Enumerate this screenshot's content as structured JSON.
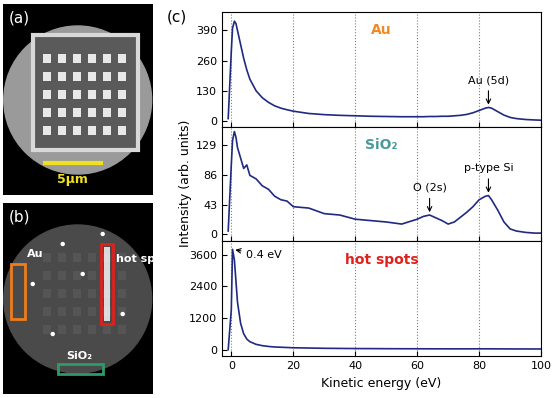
{
  "figure": {
    "panel_label": "(c)",
    "ylabel": "Intensity (arb. units)"
  },
  "images": [
    {
      "label": "(a)",
      "scale_bar": "5μm"
    },
    {
      "label": "(b)",
      "regions": [
        {
          "text": "Au",
          "color": "#f07d1a"
        },
        {
          "text": "hot spots",
          "color": "#e0201b"
        },
        {
          "text": "SiO₂",
          "color": "#2e9a6a"
        }
      ]
    }
  ],
  "chart_data": [
    {
      "type": "line",
      "title": "Au",
      "x": [
        -1,
        0,
        0.4,
        1,
        1.5,
        2,
        3,
        4,
        5,
        6,
        8,
        10,
        12,
        14,
        16,
        18,
        20,
        25,
        30,
        35,
        40,
        45,
        50,
        55,
        60,
        62,
        64,
        66,
        68,
        70,
        72,
        74,
        76,
        78,
        80,
        82,
        83,
        84,
        86,
        88,
        90,
        92,
        95,
        98,
        100
      ],
      "series": [
        {
          "color": "#1f2a80",
          "values": [
            10,
            300,
            400,
            430,
            420,
            390,
            330,
            270,
            220,
            180,
            130,
            100,
            80,
            65,
            55,
            48,
            42,
            32,
            27,
            24,
            22,
            20,
            19,
            18,
            18,
            18,
            19,
            19,
            20,
            20,
            22,
            24,
            28,
            35,
            45,
            55,
            58,
            55,
            40,
            25,
            15,
            10,
            6,
            4,
            3
          ]
        }
      ],
      "xlim": [
        -3,
        100
      ],
      "ylim": [
        -25,
        470
      ],
      "xticks": [
        0,
        20,
        40,
        60,
        80,
        100
      ],
      "yticks": [
        0,
        130,
        260,
        390
      ],
      "grid": true,
      "tick_labels": "y",
      "annotations": [
        {
          "text": "Au (5d)",
          "x": 83,
          "y": 58
        }
      ]
    },
    {
      "type": "line",
      "title": "SiO₂",
      "x": [
        -1,
        0,
        0.4,
        1,
        1.5,
        2,
        3,
        4,
        5,
        6,
        8,
        10,
        12,
        14,
        16,
        18,
        20,
        25,
        30,
        35,
        40,
        45,
        50,
        55,
        60,
        62,
        64,
        66,
        68,
        70,
        72,
        74,
        76,
        78,
        80,
        82,
        83,
        84,
        86,
        88,
        90,
        92,
        95,
        98,
        100
      ],
      "series": [
        {
          "color": "#1f2a80",
          "values": [
            5,
            100,
            135,
            148,
            140,
            125,
            110,
            95,
            100,
            85,
            80,
            70,
            65,
            55,
            50,
            48,
            40,
            38,
            30,
            28,
            22,
            20,
            18,
            15,
            22,
            26,
            28,
            24,
            20,
            15,
            18,
            25,
            32,
            40,
            50,
            55,
            56,
            50,
            35,
            18,
            8,
            5,
            3,
            2,
            2
          ]
        }
      ],
      "xlim": [
        -3,
        100
      ],
      "ylim": [
        -10,
        155
      ],
      "xticks": [
        0,
        20,
        40,
        60,
        80,
        100
      ],
      "yticks": [
        0,
        43,
        86,
        129
      ],
      "grid": true,
      "tick_labels": "y",
      "annotations": [
        {
          "text": "O (2s)",
          "x": 64,
          "y": 28
        },
        {
          "text": "p-type Si",
          "x": 83,
          "y": 56
        }
      ]
    },
    {
      "type": "line",
      "title": "hot spots",
      "xlabel": "Kinetic energy (eV)",
      "x": [
        -1,
        0,
        0.4,
        1,
        1.5,
        2,
        3,
        4,
        5,
        6,
        8,
        10,
        12,
        14,
        16,
        18,
        20,
        25,
        30,
        35,
        40,
        45,
        50,
        55,
        60,
        62,
        64,
        66,
        68,
        70,
        72,
        74,
        76,
        78,
        80,
        82,
        83,
        84,
        86,
        88,
        90,
        92,
        95,
        98,
        100
      ],
      "series": [
        {
          "color": "#1f2a80",
          "values": [
            0,
            1500,
            3800,
            3400,
            2600,
            1800,
            1000,
            600,
            400,
            300,
            200,
            150,
            120,
            100,
            90,
            80,
            70,
            60,
            50,
            45,
            40,
            38,
            35,
            33,
            32,
            31,
            30,
            30,
            30,
            29,
            29,
            29,
            29,
            29,
            30,
            30,
            30,
            29,
            28,
            27,
            26,
            25,
            25,
            24,
            24
          ]
        }
      ],
      "xlim": [
        -3,
        100
      ],
      "ylim": [
        -250,
        4100
      ],
      "xticks": [
        0,
        20,
        40,
        60,
        80,
        100
      ],
      "yticks": [
        0,
        1200,
        2400,
        3600
      ],
      "grid": true,
      "annotations": [
        {
          "text": "0.4 eV",
          "x": 0.4,
          "y": 3800
        }
      ]
    }
  ]
}
